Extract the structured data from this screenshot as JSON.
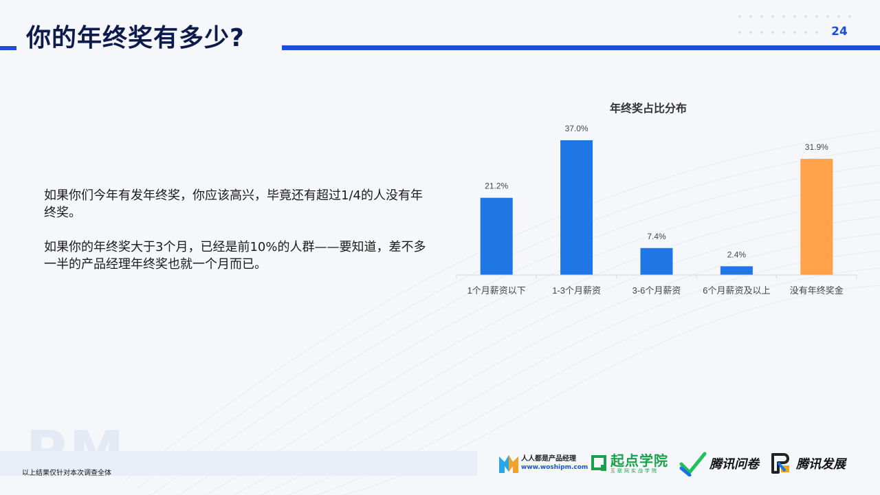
{
  "header": {
    "title": "你的年终奖有多少?",
    "page_number": "24"
  },
  "body": {
    "paragraphs": [
      "如果你们今年有发年终奖，你应该高兴，毕竟还有超过1/4的人没有年终奖。",
      "如果你的年终奖大于3个月，已经是前10%的人群——要知道，差不多一半的产品经理年终奖也就一个月而已。"
    ]
  },
  "chart_data": {
    "type": "bar",
    "title": "年终奖占比分布",
    "categories": [
      "1个月薪资以下",
      "1-3个月薪资",
      "3-6个月薪资",
      "6个月薪资及以上",
      "没有年终奖金"
    ],
    "values": [
      21.2,
      37.0,
      7.4,
      2.4,
      31.9
    ],
    "value_labels": [
      "21.2%",
      "37.0%",
      "7.4%",
      "2.4%",
      "31.9%"
    ],
    "unit": "%",
    "colors": [
      "#1f77e6",
      "#1f77e6",
      "#1f77e6",
      "#1f77e6",
      "#ffa24a"
    ],
    "ylim": [
      0,
      37.0
    ],
    "xlabel": "",
    "ylabel": "",
    "grid": false,
    "legend": "none"
  },
  "footer": {
    "note": "以上结果仅针对本次调查全体",
    "watermark": "PM",
    "logos": {
      "woshipm": {
        "name": "人人都是产品经理",
        "url": "www.woshipm.com",
        "icon": "woshipm-m-icon"
      },
      "qidian": {
        "name": "起点学院",
        "sub": "互联网实战学院",
        "icon": "qidian-square-icon"
      },
      "wenjuan": {
        "name": "腾讯问卷",
        "icon": "check-mark-icon"
      },
      "fazhan": {
        "name": "腾讯发展",
        "icon": "tencent-swirl-icon"
      }
    }
  }
}
